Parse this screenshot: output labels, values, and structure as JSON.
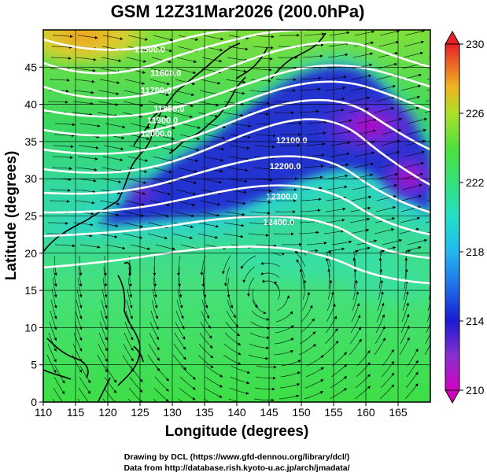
{
  "title": "GSM 12Z31Mar2026 (200.0hPa)",
  "x_axis": {
    "label": "Longitude (degrees)",
    "range": [
      110,
      170
    ],
    "ticks": [
      "110",
      "115",
      "120",
      "125",
      "130",
      "135",
      "140",
      "145",
      "150",
      "155",
      "160",
      "165"
    ],
    "tick_values": [
      110,
      115,
      120,
      125,
      130,
      135,
      140,
      145,
      150,
      155,
      160,
      165
    ]
  },
  "y_axis": {
    "label": "Latitude (degrees)",
    "range": [
      0,
      50
    ],
    "ticks": [
      "0",
      "5",
      "10",
      "15",
      "20",
      "25",
      "30",
      "35",
      "40",
      "45"
    ],
    "tick_values": [
      0,
      5,
      10,
      15,
      20,
      25,
      30,
      35,
      40,
      45
    ]
  },
  "colorbar": {
    "range": [
      210,
      230
    ],
    "ticks": [
      "210",
      "214",
      "218",
      "222",
      "226",
      "230"
    ],
    "tick_values": [
      210,
      214,
      218,
      222,
      226,
      230
    ],
    "quantity": "temperature"
  },
  "contours": [
    {
      "label": "11500.0",
      "lon": 126.5,
      "lat": 47.0
    },
    {
      "label": "11600.0",
      "lon": 129.0,
      "lat": 43.8
    },
    {
      "label": "11700.0",
      "lon": 127.5,
      "lat": 41.5
    },
    {
      "label": "11800.0",
      "lon": 129.5,
      "lat": 39.0
    },
    {
      "label": "11900.0",
      "lon": 128.5,
      "lat": 37.5
    },
    {
      "label": "12000.0",
      "lon": 127.5,
      "lat": 35.7
    },
    {
      "label": "12100.0",
      "lon": 148.5,
      "lat": 34.8
    },
    {
      "label": "12200.0",
      "lon": 147.5,
      "lat": 31.3
    },
    {
      "label": "12300.0",
      "lon": 147.0,
      "lat": 27.2
    },
    {
      "label": "12400.0",
      "lon": 146.5,
      "lat": 23.8
    }
  ],
  "credits": {
    "line1": "Drawing by DCL (https://www.gfd-dennou.org/library/dcl/)",
    "line2": "Data from http://database.rish.kyoto-u.ac.jp/arch/jmadata/"
  }
}
